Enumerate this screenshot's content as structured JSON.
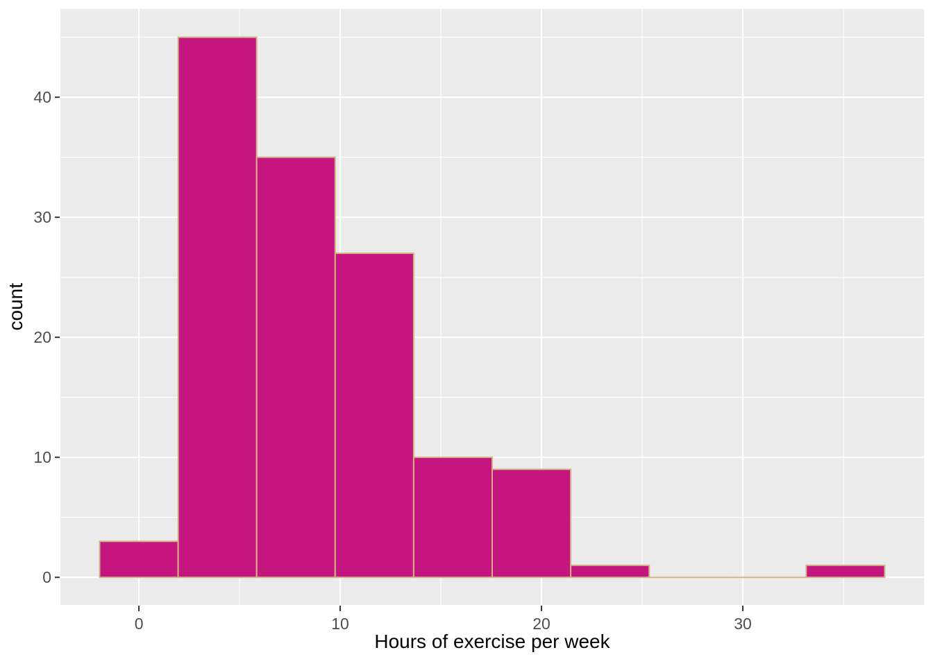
{
  "chart_data": {
    "type": "bar",
    "subtype": "histogram",
    "title": "",
    "xlabel": "Hours of exercise per week",
    "ylabel": "count",
    "bin_width": 3.9,
    "bin_centers": [
      0,
      3.9,
      7.8,
      11.7,
      15.6,
      19.5,
      23.4,
      27.3,
      31.2,
      35.1
    ],
    "counts": [
      3,
      45,
      35,
      27,
      10,
      9,
      1,
      0,
      0,
      1
    ],
    "x_ticks": [
      0,
      10,
      20,
      30
    ],
    "x_minor_ticks": [
      5,
      15,
      25,
      35
    ],
    "y_ticks": [
      0,
      10,
      20,
      30,
      40
    ],
    "y_minor_ticks": [
      5,
      15,
      25,
      35,
      45
    ],
    "xlim": [
      -3.9,
      39.0
    ],
    "ylim": [
      -2.3,
      47.35
    ],
    "grid": "major-and-minor",
    "legend_position": "none",
    "colors": {
      "bar_fill": "#C5167F",
      "bar_border": "#D3B283",
      "panel_background": "#EBEBEB",
      "gridline": "#FFFFFF",
      "tick_label": "#4D4D4D",
      "tick_mark": "#333333",
      "axis_title": "#000000",
      "figure_background": "#FFFFFF"
    }
  }
}
